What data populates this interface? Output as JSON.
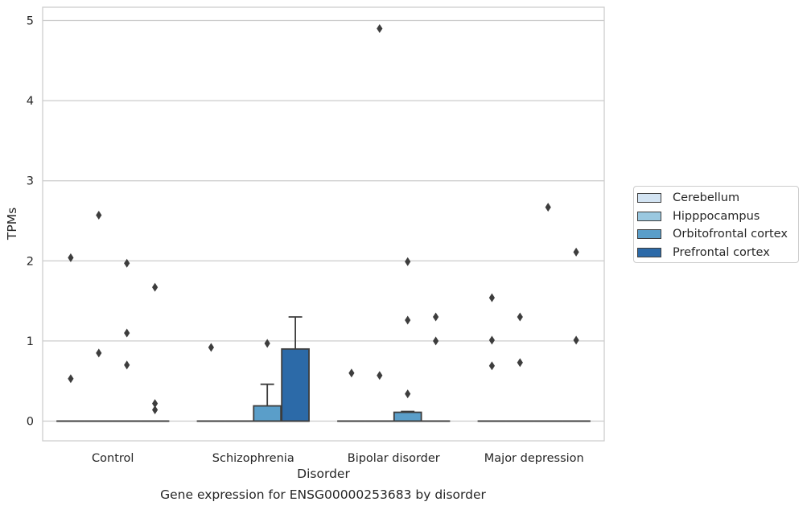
{
  "caption": "Gene expression for ENSG00000253683 by disorder",
  "chart_data": {
    "type": "box",
    "title": "",
    "xlabel": "Disorder",
    "ylabel": "TPMs",
    "categories": [
      "Control",
      "Schizophrenia",
      "Bipolar disorder",
      "Major depression"
    ],
    "ylim": [
      -0.24,
      5.16
    ],
    "yticks": [
      0,
      1,
      2,
      3,
      4,
      5
    ],
    "grid": true,
    "legend_position": "outside-right",
    "series": [
      {
        "name": "Cerebellum",
        "color": "#d3e4f3",
        "boxes": [
          {
            "q1": 0,
            "median": 0,
            "q3": 0,
            "whisker_low": 0,
            "whisker_high": 0,
            "outliers": [
              2.04,
              0.53
            ]
          },
          {
            "q1": 0,
            "median": 0,
            "q3": 0,
            "whisker_low": 0,
            "whisker_high": 0,
            "outliers": [
              0.92
            ]
          },
          {
            "q1": 0,
            "median": 0,
            "q3": 0,
            "whisker_low": 0,
            "whisker_high": 0,
            "outliers": [
              0.6
            ]
          },
          {
            "q1": 0,
            "median": 0,
            "q3": 0,
            "whisker_low": 0,
            "whisker_high": 0,
            "outliers": [
              1.54,
              1.01,
              0.69
            ]
          }
        ]
      },
      {
        "name": "Hipppocampus",
        "color": "#9ac8e0",
        "boxes": [
          {
            "q1": 0,
            "median": 0,
            "q3": 0,
            "whisker_low": 0,
            "whisker_high": 0,
            "outliers": [
              2.57,
              0.85
            ]
          },
          {
            "q1": 0,
            "median": 0,
            "q3": 0,
            "whisker_low": 0,
            "whisker_high": 0,
            "outliers": []
          },
          {
            "q1": 0,
            "median": 0,
            "q3": 0,
            "whisker_low": 0,
            "whisker_high": 0,
            "outliers": [
              4.9,
              0.57
            ]
          },
          {
            "q1": 0,
            "median": 0,
            "q3": 0,
            "whisker_low": 0,
            "whisker_high": 0,
            "outliers": [
              1.3,
              0.73
            ]
          }
        ]
      },
      {
        "name": "Orbitofrontal cortex",
        "color": "#5a9ec9",
        "boxes": [
          {
            "q1": 0,
            "median": 0,
            "q3": 0,
            "whisker_low": 0,
            "whisker_high": 0,
            "outliers": [
              1.97,
              1.1,
              0.7
            ]
          },
          {
            "q1": 0,
            "median": 0,
            "q3": 0.19,
            "whisker_low": 0,
            "whisker_high": 0.46,
            "outliers": [
              0.97
            ]
          },
          {
            "q1": 0,
            "median": 0,
            "q3": 0.11,
            "whisker_low": 0,
            "whisker_high": 0.12,
            "outliers": [
              1.99,
              1.26,
              0.34
            ]
          },
          {
            "q1": 0,
            "median": 0,
            "q3": 0,
            "whisker_low": 0,
            "whisker_high": 0,
            "outliers": [
              2.67
            ]
          }
        ]
      },
      {
        "name": "Prefrontal cortex",
        "color": "#2c6aa8",
        "boxes": [
          {
            "q1": 0,
            "median": 0,
            "q3": 0,
            "whisker_low": 0,
            "whisker_high": 0,
            "outliers": [
              1.67,
              0.22,
              0.14
            ]
          },
          {
            "q1": 0,
            "median": 0,
            "q3": 0.9,
            "whisker_low": 0,
            "whisker_high": 1.3,
            "outliers": []
          },
          {
            "q1": 0,
            "median": 0,
            "q3": 0,
            "whisker_low": 0,
            "whisker_high": 0,
            "outliers": [
              1.3,
              1.0
            ]
          },
          {
            "q1": 0,
            "median": 0,
            "q3": 0,
            "whisker_low": 0,
            "whisker_high": 0,
            "outliers": [
              2.11,
              1.01
            ]
          }
        ]
      }
    ]
  }
}
